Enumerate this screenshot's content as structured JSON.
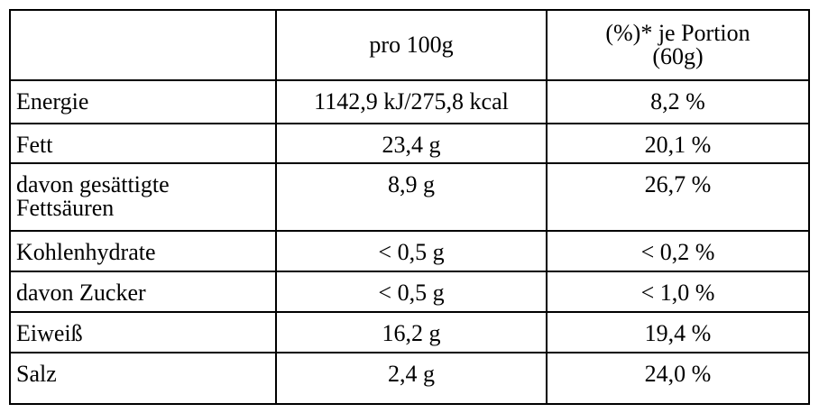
{
  "table": {
    "columns": [
      "pro 100g",
      "(%)* je Portion\n(60g)"
    ],
    "rows": [
      [
        "Energie",
        "1142,9 kJ/275,8 kcal",
        "8,2 %"
      ],
      [
        "Fett",
        "23,4 g",
        "20,1 %"
      ],
      [
        "davon gesättigte\nFettsäuren",
        "8,9 g",
        "26,7 %"
      ],
      [
        "Kohlenhydrate",
        "< 0,5 g",
        "< 0,2 %"
      ],
      [
        "davon Zucker",
        "< 0,5 g",
        "< 1,0 %"
      ],
      [
        "Eiweiß",
        "16,2 g",
        "19,4 %"
      ],
      [
        "Salz",
        "2,4 g",
        "24,0 %"
      ]
    ]
  }
}
